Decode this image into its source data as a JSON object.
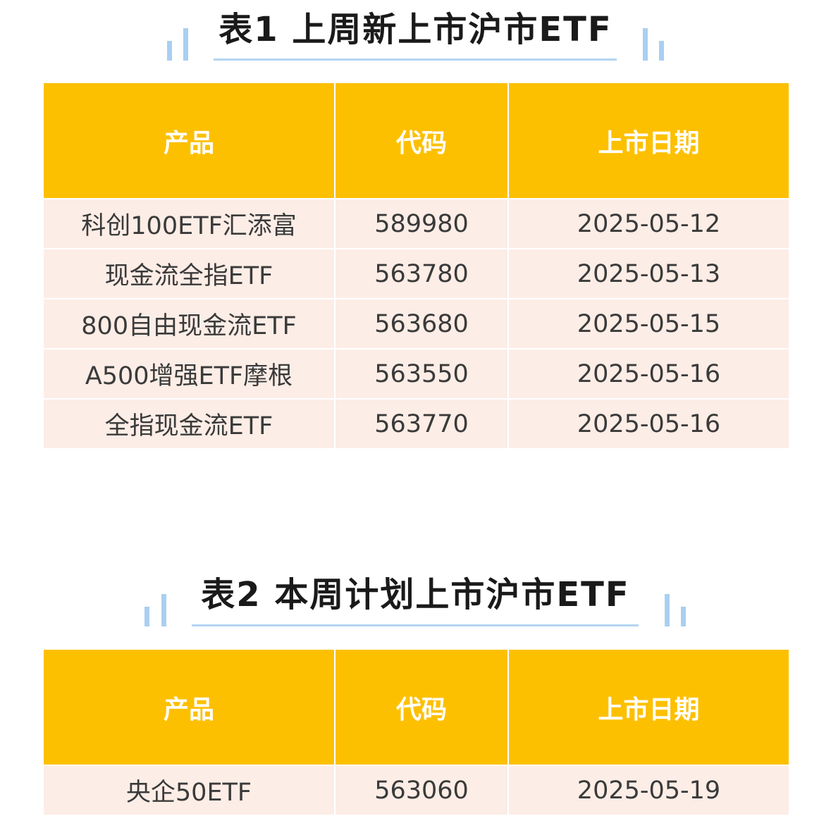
{
  "tables": [
    {
      "title": "表1 上周新上市沪市ETF",
      "headers": [
        "产品",
        "代码",
        "上市日期"
      ],
      "rows": [
        [
          "科创100ETF汇添富",
          "589980",
          "2025-05-12"
        ],
        [
          "现金流全指ETF",
          "563780",
          "2025-05-13"
        ],
        [
          "800自由现金流ETF",
          "563680",
          "2025-05-15"
        ],
        [
          "A500增强ETF摩根",
          "563550",
          "2025-05-16"
        ],
        [
          "全指现金流ETF",
          "563770",
          "2025-05-16"
        ]
      ]
    },
    {
      "title": "表2 本周计划上市沪市ETF",
      "headers": [
        "产品",
        "代码",
        "上市日期"
      ],
      "rows": [
        [
          "央企50ETF",
          "563060",
          "2025-05-19"
        ]
      ]
    }
  ],
  "colors": {
    "header": "#fdc000",
    "row": "#fcede6",
    "accent": "#a9cff2"
  }
}
